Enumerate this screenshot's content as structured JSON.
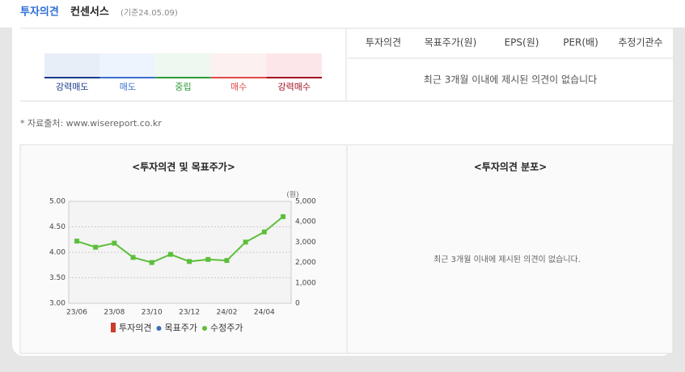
{
  "header": {
    "title": "투자의견",
    "subtitle": "컨센서스",
    "date": "(기준24.05.09)"
  },
  "scale": [
    "강력매도",
    "매도",
    "중립",
    "매수",
    "강력매수"
  ],
  "table": {
    "columns": [
      "투자의견",
      "목표주가(원)",
      "EPS(원)",
      "PER(배)",
      "추정기관수"
    ],
    "message": "최근 3개월 이내에 제시된 의견이 없습니다"
  },
  "source": "* 자료출처: www.wisereport.co.kr",
  "chart_data": {
    "type": "line",
    "title": "<투자의견 및 목표주가>",
    "categories": [
      "23/06",
      null,
      "23/08",
      null,
      "23/10",
      null,
      "23/12",
      null,
      "24/02",
      null,
      "24/04",
      null
    ],
    "ylim": [
      3,
      5
    ],
    "yticks": [
      {
        "value": 3,
        "label": "3.00"
      },
      {
        "value": 3.5,
        "label": "3.50"
      },
      {
        "value": 4,
        "label": "4.00"
      },
      {
        "value": 4.5,
        "label": "4.50"
      },
      {
        "value": 5,
        "label": "5.00"
      }
    ],
    "y2lim": [
      0,
      5000
    ],
    "y2ticks": [
      0,
      {
        "value": 1000,
        "label": "1,000"
      },
      {
        "value": 2000,
        "label": "2,000"
      },
      {
        "value": 3000,
        "label": "3,000"
      },
      {
        "value": 4000,
        "label": "4,000"
      },
      {
        "value": 5000,
        "label": "5,000"
      }
    ],
    "y2_label": "(원)",
    "grid": true,
    "series": [
      {
        "name": "투자의견",
        "color": "#cc3b2c",
        "values": [
          null,
          null,
          null,
          null,
          null,
          null,
          null,
          null,
          null,
          null,
          null,
          null
        ]
      },
      {
        "name": "목표주가",
        "color": "#3a6fb5",
        "axis": "y2",
        "values": [
          null,
          null,
          null,
          null,
          null,
          null,
          null,
          null,
          null,
          null,
          null,
          null
        ]
      },
      {
        "name": "수정주가",
        "color": "#5cbf3a",
        "axis": "y2",
        "values": [
          3050,
          2750,
          2950,
          2250,
          2000,
          2400,
          2050,
          2150,
          2100,
          3000,
          3500,
          4250
        ]
      }
    ]
  },
  "distribution": {
    "title": "<투자의견 분포>",
    "message": "최근 3개월 이내에 제시된 의견이 없습니다."
  }
}
